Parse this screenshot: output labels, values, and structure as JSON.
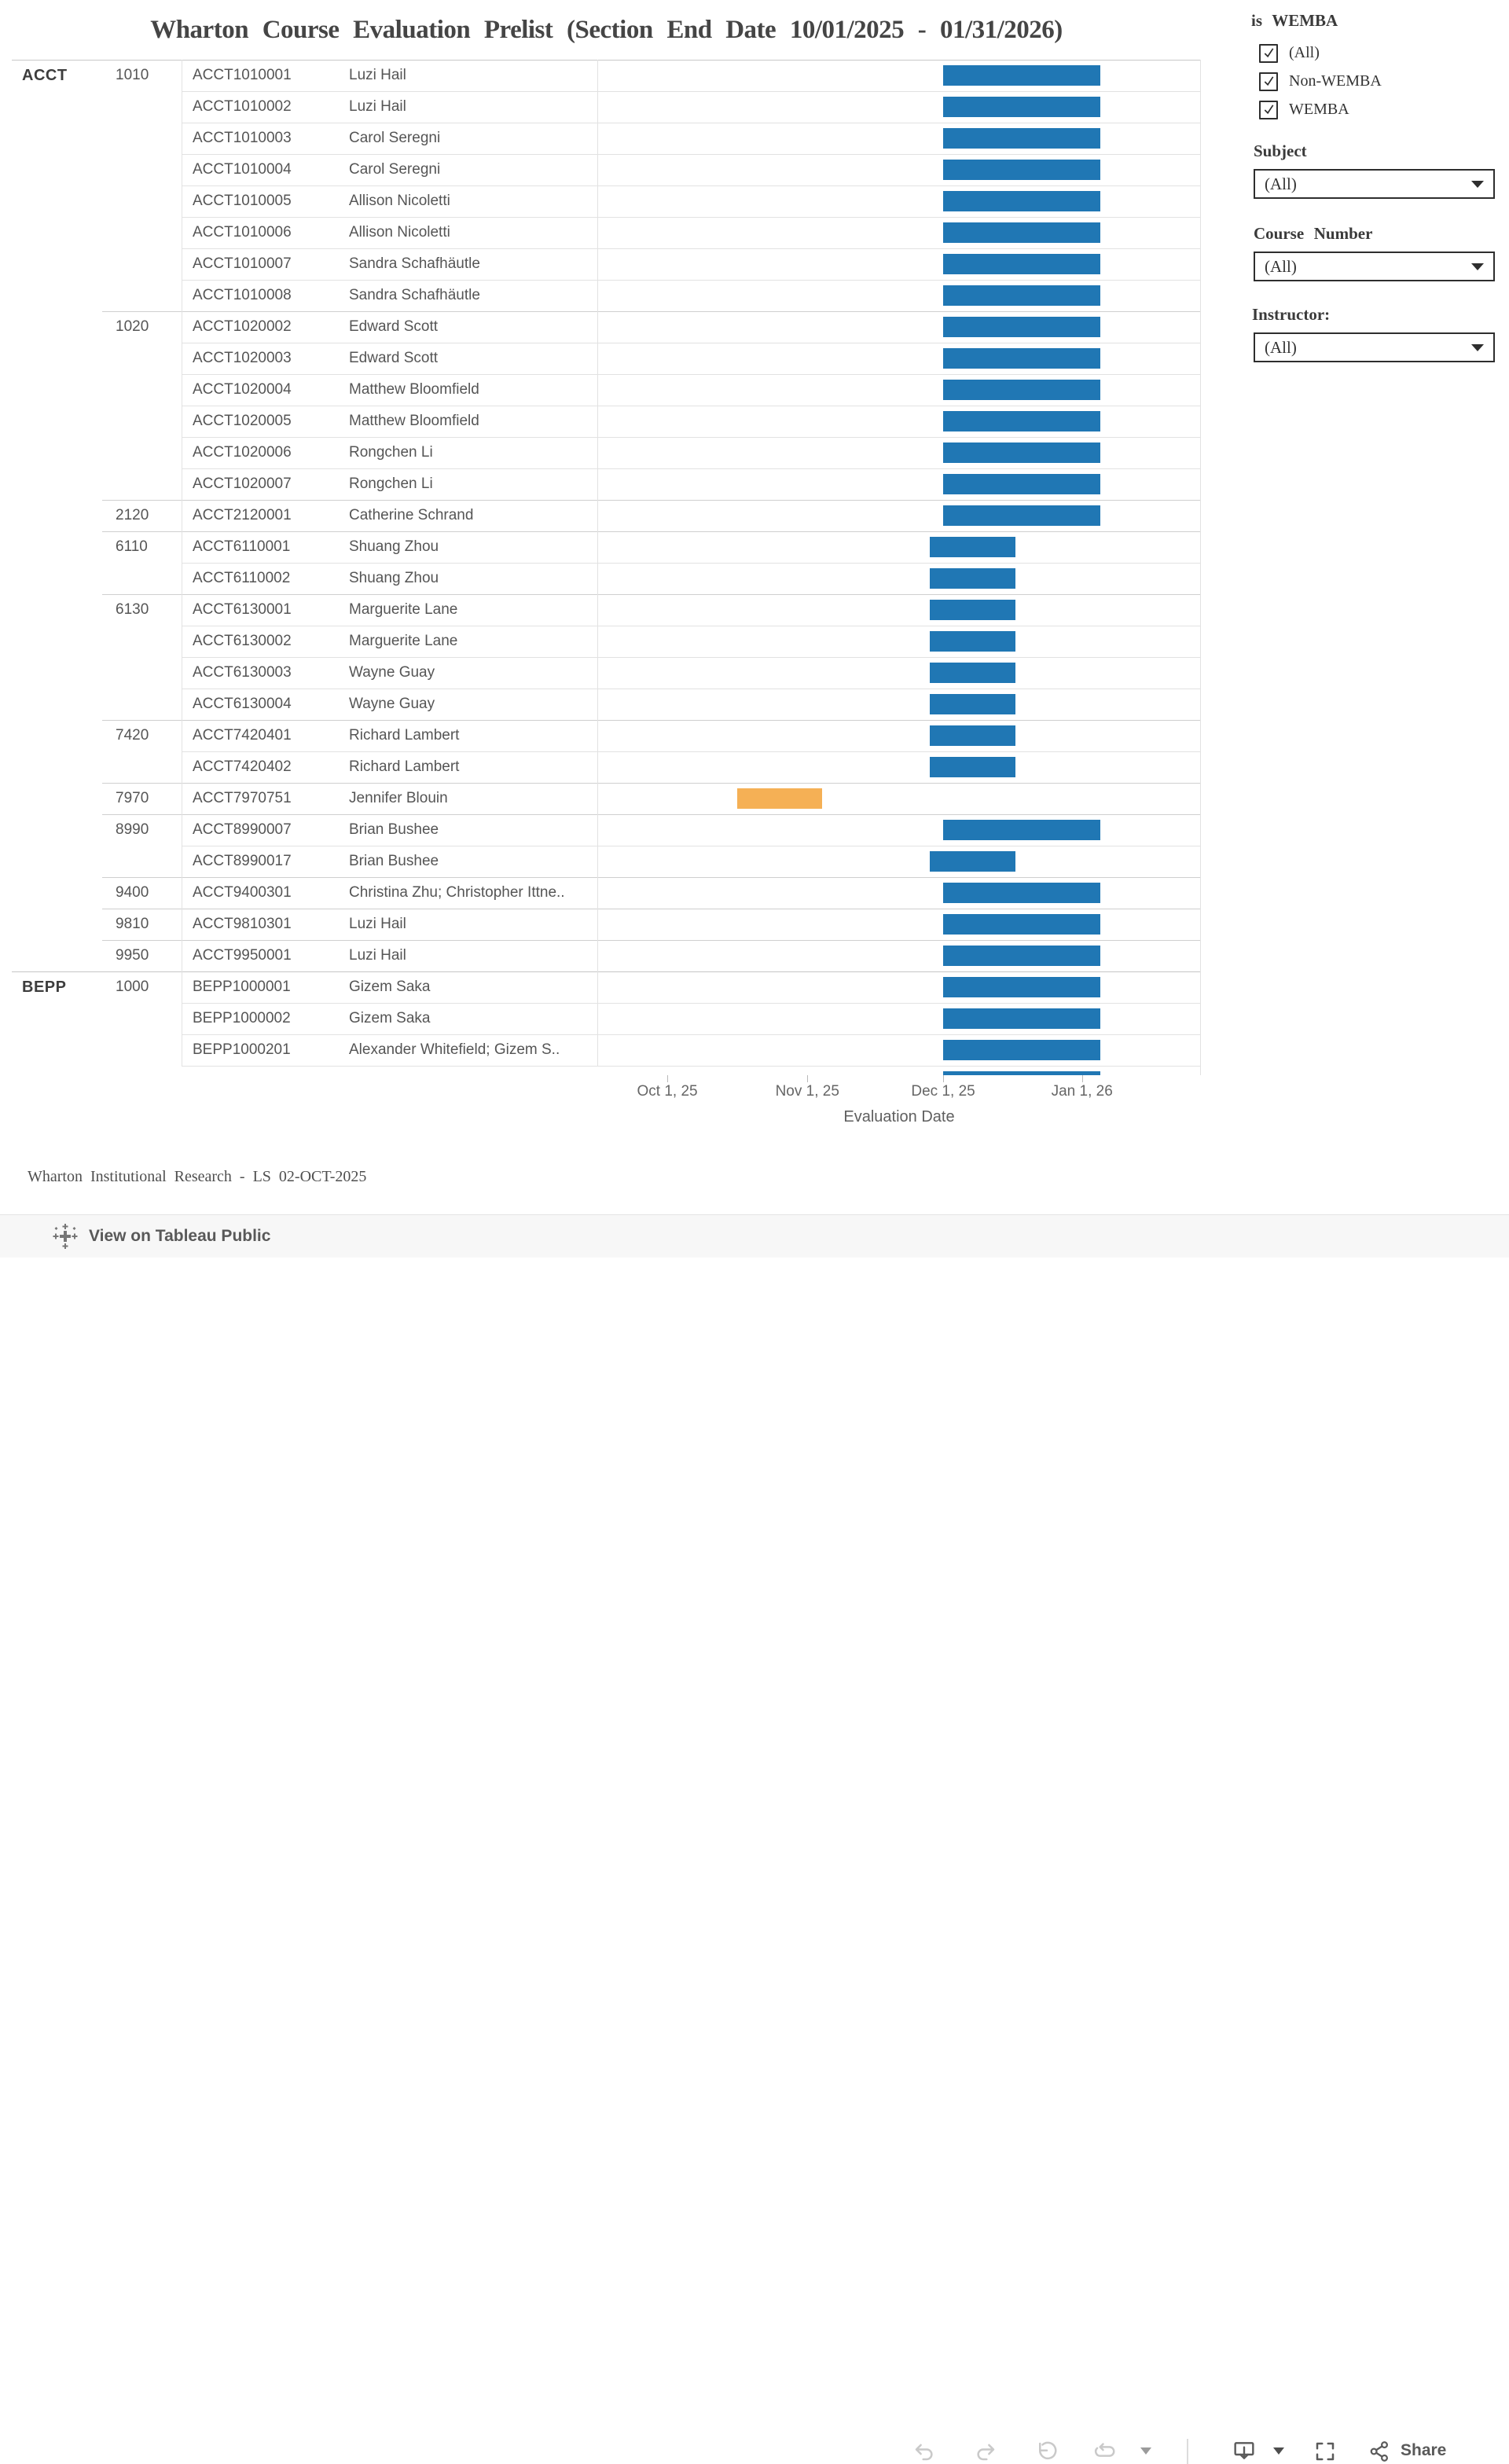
{
  "title": "Wharton Course Evaluation Prelist (Section End Date 10/01/2025 - 01/31/2026)",
  "filters": {
    "wemba": {
      "label": "is WEMBA",
      "options": [
        {
          "label": "(All)",
          "checked": true
        },
        {
          "label": "Non-WEMBA",
          "checked": true
        },
        {
          "label": "WEMBA",
          "checked": true
        }
      ]
    },
    "subject": {
      "label": "Subject",
      "value": "(All)"
    },
    "course_number": {
      "label": "Course Number",
      "value": "(All)"
    },
    "instructor": {
      "label": "Instructor:",
      "value": "(All)"
    }
  },
  "chart_data": {
    "type": "gantt",
    "title": "Wharton Course Evaluation Prelist (Section End Date 10/01/2025 - 01/31/2026)",
    "xlabel": "Evaluation Date",
    "legend_position": "none",
    "grid": "row-separators",
    "x_axis": {
      "ticks": [
        {
          "label": "Oct 1, 25",
          "pos": 0.116
        },
        {
          "label": "Nov 1, 25",
          "pos": 0.348
        },
        {
          "label": "Dec 1, 25",
          "pos": 0.573
        },
        {
          "label": "Jan 1, 26",
          "pos": 0.803
        }
      ]
    },
    "bar_styles": {
      "standard": {
        "color": "#2077B4",
        "start": 0.573,
        "end": 0.833
      },
      "short": {
        "color": "#2077B4",
        "start": 0.551,
        "end": 0.693
      },
      "early": {
        "color": "#F5B055",
        "start": 0.232,
        "end": 0.372
      }
    },
    "rows": [
      {
        "subject": "ACCT",
        "course": "1010",
        "section": "ACCT1010001",
        "instructor": "Luzi Hail",
        "bar": "standard",
        "sep": "none"
      },
      {
        "section": "ACCT1010002",
        "instructor": "Luzi Hail",
        "bar": "standard",
        "sep": "row"
      },
      {
        "section": "ACCT1010003",
        "instructor": "Carol Seregni",
        "bar": "standard",
        "sep": "row"
      },
      {
        "section": "ACCT1010004",
        "instructor": "Carol Seregni",
        "bar": "standard",
        "sep": "row"
      },
      {
        "section": "ACCT1010005",
        "instructor": "Allison Nicoletti",
        "bar": "standard",
        "sep": "row"
      },
      {
        "section": "ACCT1010006",
        "instructor": "Allison Nicoletti",
        "bar": "standard",
        "sep": "row"
      },
      {
        "section": "ACCT1010007",
        "instructor": "Sandra Schafhäutle",
        "bar": "standard",
        "sep": "row"
      },
      {
        "section": "ACCT1010008",
        "instructor": "Sandra Schafhäutle",
        "bar": "standard",
        "sep": "row"
      },
      {
        "course": "1020",
        "section": "ACCT1020002",
        "instructor": "Edward Scott",
        "bar": "standard",
        "sep": "course"
      },
      {
        "section": "ACCT1020003",
        "instructor": "Edward Scott",
        "bar": "standard",
        "sep": "row"
      },
      {
        "section": "ACCT1020004",
        "instructor": "Matthew Bloomfield",
        "bar": "standard",
        "sep": "row"
      },
      {
        "section": "ACCT1020005",
        "instructor": "Matthew Bloomfield",
        "bar": "standard",
        "sep": "row"
      },
      {
        "section": "ACCT1020006",
        "instructor": "Rongchen Li",
        "bar": "standard",
        "sep": "row"
      },
      {
        "section": "ACCT1020007",
        "instructor": "Rongchen Li",
        "bar": "standard",
        "sep": "row"
      },
      {
        "course": "2120",
        "section": "ACCT2120001",
        "instructor": "Catherine Schrand",
        "bar": "standard",
        "sep": "course"
      },
      {
        "course": "6110",
        "section": "ACCT6110001",
        "instructor": "Shuang Zhou",
        "bar": "short",
        "sep": "course"
      },
      {
        "section": "ACCT6110002",
        "instructor": "Shuang Zhou",
        "bar": "short",
        "sep": "row"
      },
      {
        "course": "6130",
        "section": "ACCT6130001",
        "instructor": "Marguerite Lane",
        "bar": "short",
        "sep": "course"
      },
      {
        "section": "ACCT6130002",
        "instructor": "Marguerite Lane",
        "bar": "short",
        "sep": "row"
      },
      {
        "section": "ACCT6130003",
        "instructor": "Wayne Guay",
        "bar": "short",
        "sep": "row"
      },
      {
        "section": "ACCT6130004",
        "instructor": "Wayne Guay",
        "bar": "short",
        "sep": "row"
      },
      {
        "course": "7420",
        "section": "ACCT7420401",
        "instructor": "Richard Lambert",
        "bar": "short",
        "sep": "course"
      },
      {
        "section": "ACCT7420402",
        "instructor": "Richard Lambert",
        "bar": "short",
        "sep": "row"
      },
      {
        "course": "7970",
        "section": "ACCT7970751",
        "instructor": "Jennifer Blouin",
        "bar": "early",
        "sep": "course"
      },
      {
        "course": "8990",
        "section": "ACCT8990007",
        "instructor": "Brian Bushee",
        "bar": "standard",
        "sep": "course"
      },
      {
        "section": "ACCT8990017",
        "instructor": "Brian Bushee",
        "bar": "short",
        "sep": "row"
      },
      {
        "course": "9400",
        "section": "ACCT9400301",
        "instructor": "Christina Zhu; Christopher Ittne..",
        "bar": "standard",
        "sep": "course"
      },
      {
        "course": "9810",
        "section": "ACCT9810301",
        "instructor": "Luzi Hail",
        "bar": "standard",
        "sep": "course"
      },
      {
        "course": "9950",
        "section": "ACCT9950001",
        "instructor": "Luzi Hail",
        "bar": "standard",
        "sep": "course"
      },
      {
        "subject": "BEPP",
        "course": "1000",
        "section": "BEPP1000001",
        "instructor": "Gizem Saka",
        "bar": "standard",
        "sep": "subject"
      },
      {
        "section": "BEPP1000002",
        "instructor": "Gizem Saka",
        "bar": "standard",
        "sep": "row"
      },
      {
        "section": "BEPP1000201",
        "instructor": "Alexander Whitefield; Gizem S..",
        "bar": "standard",
        "sep": "row"
      },
      {
        "partial": true,
        "bar": "standard",
        "sep": "row"
      }
    ]
  },
  "footer": "Wharton Institutional Research - LS 02-OCT-2025",
  "toolbar": {
    "view_on_label": "View on Tableau Public",
    "share_label": "Share",
    "icons": [
      "tableau-logo",
      "undo",
      "redo",
      "reset",
      "refresh",
      "caret-down",
      "download-device",
      "caret-down",
      "fullscreen",
      "share"
    ]
  }
}
